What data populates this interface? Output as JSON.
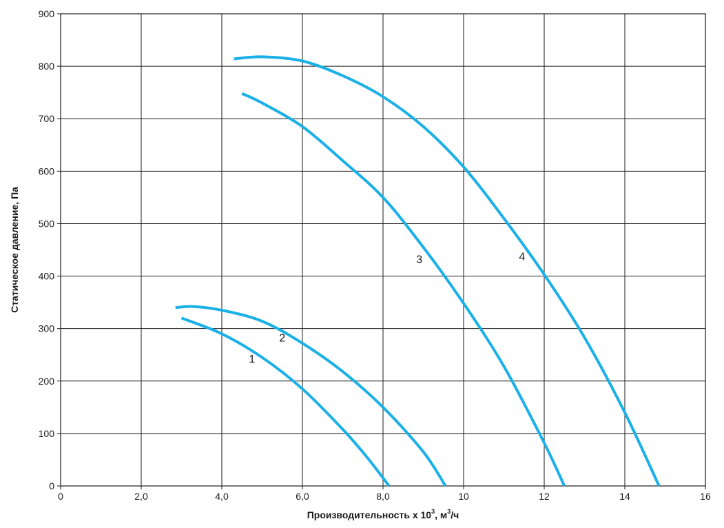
{
  "chart_data": {
    "type": "line",
    "title": "",
    "xlabel": {
      "main": "Производительность х 10",
      "sup": "3",
      "mid": ", м",
      "sup2": "3",
      "end": "/ч"
    },
    "ylabel": "Статическое давление, Па",
    "xlim": [
      0,
      16
    ],
    "ylim": [
      0,
      900
    ],
    "x_ticks": [
      0,
      2,
      4,
      6,
      8,
      10,
      12,
      14,
      16
    ],
    "x_tick_labels": [
      "0",
      "2,0",
      "4,0",
      "6,0",
      "8,0",
      "10",
      "12",
      "14",
      "16"
    ],
    "y_ticks": [
      0,
      100,
      200,
      300,
      400,
      500,
      600,
      700,
      800,
      900
    ],
    "y_tick_labels": [
      "0",
      "100",
      "200",
      "300",
      "400",
      "500",
      "600",
      "700",
      "800",
      "900"
    ],
    "grid": true,
    "line_color": "#1ab0e8",
    "series": [
      {
        "name": "1",
        "label_pos": [
          4.75,
          235
        ],
        "points": [
          [
            3.0,
            320
          ],
          [
            4.0,
            290
          ],
          [
            5.0,
            245
          ],
          [
            6.0,
            185
          ],
          [
            7.0,
            108
          ],
          [
            7.6,
            55
          ],
          [
            8.15,
            0
          ]
        ]
      },
      {
        "name": "2",
        "label_pos": [
          5.5,
          275
        ],
        "points": [
          [
            2.85,
            340
          ],
          [
            3.3,
            342
          ],
          [
            4.0,
            335
          ],
          [
            5.0,
            314
          ],
          [
            6.0,
            272
          ],
          [
            7.0,
            218
          ],
          [
            8.0,
            150
          ],
          [
            9.0,
            65
          ],
          [
            9.55,
            0
          ]
        ]
      },
      {
        "name": "3",
        "label_pos": [
          8.9,
          425
        ],
        "points": [
          [
            4.5,
            748
          ],
          [
            5.0,
            730
          ],
          [
            6.0,
            685
          ],
          [
            7.0,
            620
          ],
          [
            8.0,
            550
          ],
          [
            9.0,
            455
          ],
          [
            10.0,
            348
          ],
          [
            11.0,
            228
          ],
          [
            12.0,
            82
          ],
          [
            12.5,
            0
          ]
        ]
      },
      {
        "name": "4",
        "label_pos": [
          11.45,
          430
        ],
        "points": [
          [
            4.3,
            814
          ],
          [
            5.0,
            818
          ],
          [
            6.0,
            810
          ],
          [
            7.0,
            782
          ],
          [
            8.0,
            742
          ],
          [
            9.0,
            685
          ],
          [
            10.0,
            608
          ],
          [
            11.0,
            510
          ],
          [
            12.0,
            403
          ],
          [
            13.0,
            283
          ],
          [
            14.0,
            140
          ],
          [
            14.85,
            0
          ]
        ]
      }
    ]
  }
}
